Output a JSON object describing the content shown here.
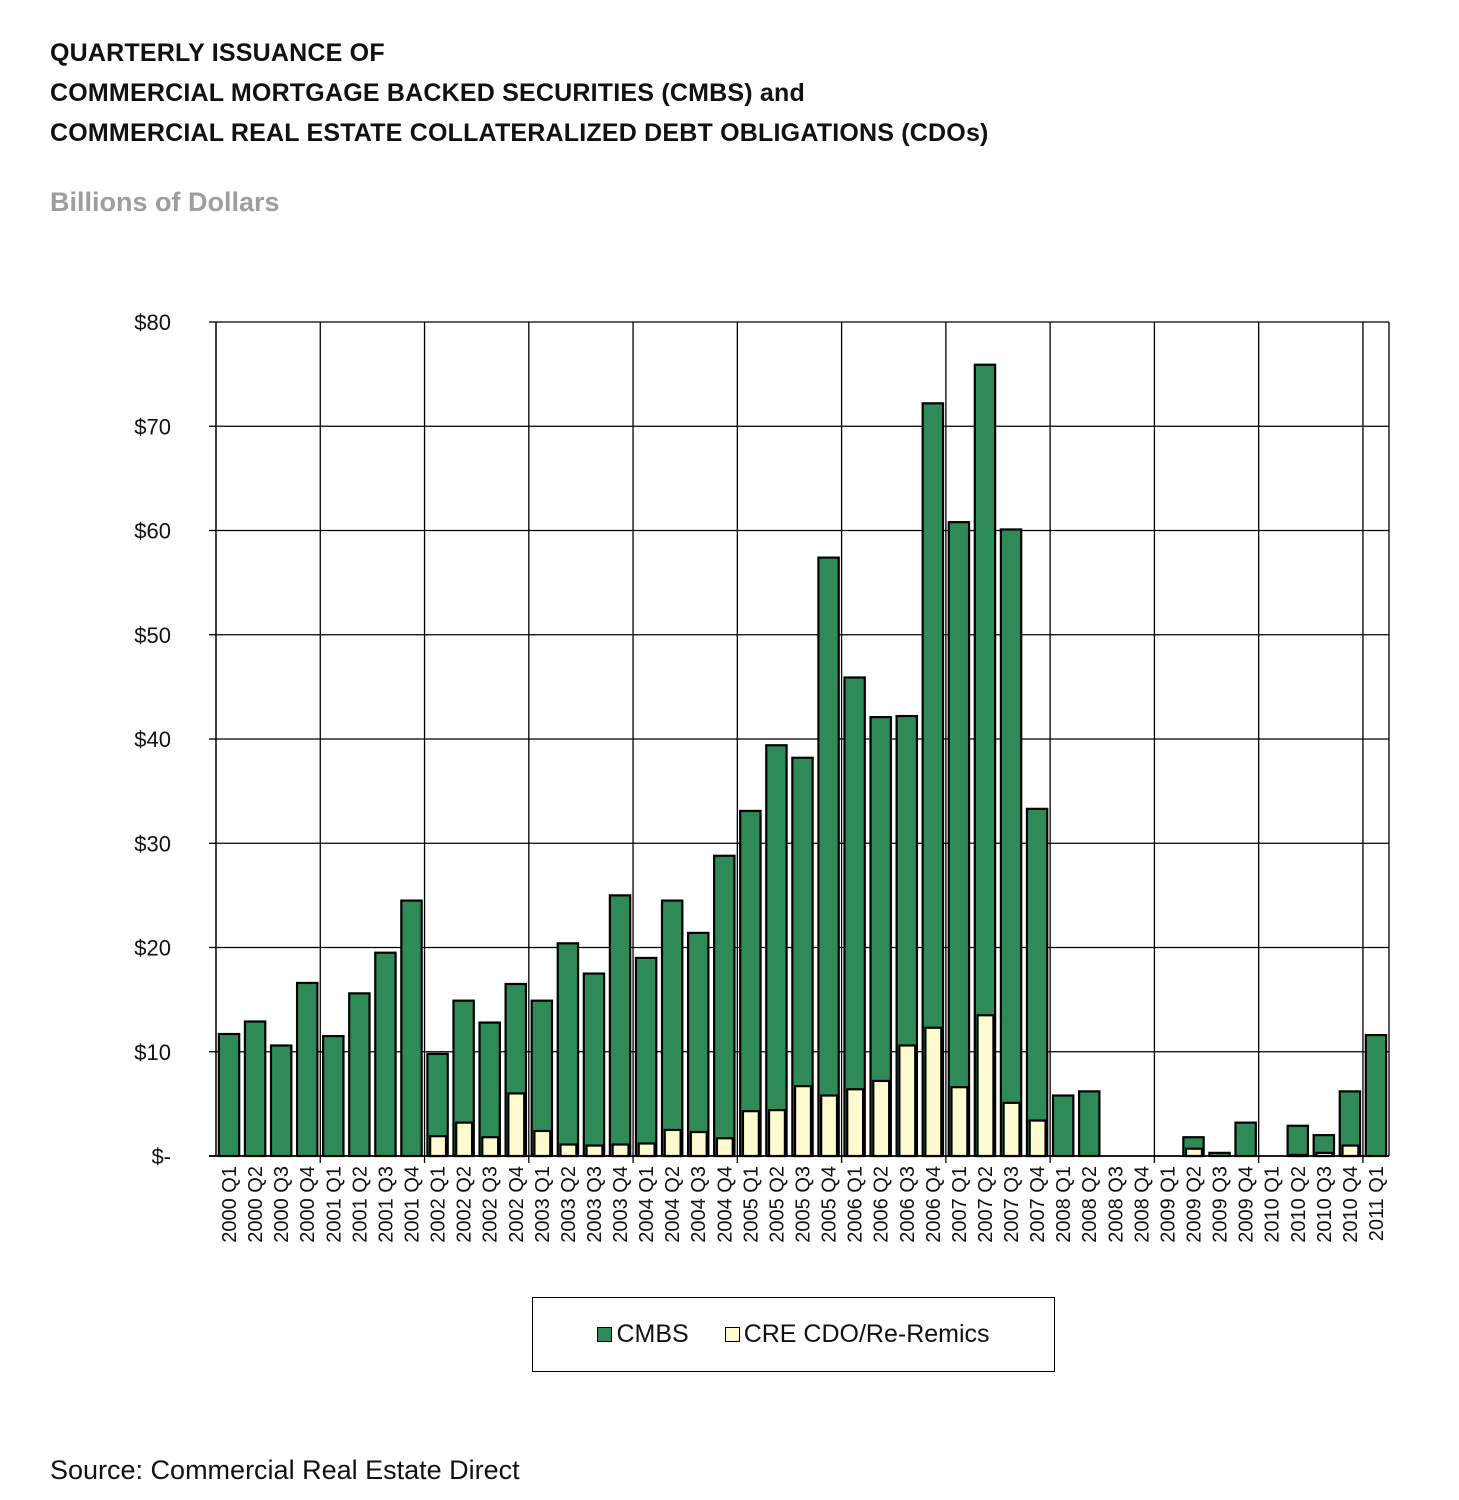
{
  "title_lines": [
    "QUARTERLY ISSUANCE OF",
    "COMMERCIAL MORTGAGE BACKED SECURITIES (CMBS) and",
    "COMMERCIAL REAL ESTATE COLLATERALIZED DEBT OBLIGATIONS (CDOs)"
  ],
  "subtitle": "Billions of Dollars",
  "source": "Source: Commercial Real Estate Direct",
  "colors": {
    "cmbs": "#2e8b57",
    "cre_cdo": "#fffbd0",
    "outline": "#000000"
  },
  "chart_data": {
    "type": "bar",
    "title": "",
    "xlabel": "",
    "ylabel": "",
    "ylim": [
      0,
      80
    ],
    "yticks": [
      0,
      10,
      20,
      30,
      40,
      50,
      60,
      70,
      80
    ],
    "ytick_labels": [
      "$-",
      "$10",
      "$20",
      "$30",
      "$40",
      "$50",
      "$60",
      "$70",
      "$80"
    ],
    "grid": true,
    "legend_position": "bottom",
    "categories": [
      "2000 Q1",
      "2000 Q2",
      "2000 Q3",
      "2000 Q4",
      "2001 Q1",
      "2001 Q2",
      "2001 Q3",
      "2001 Q4",
      "2002 Q1",
      "2002 Q2",
      "2002 Q3",
      "2002 Q4",
      "2003 Q1",
      "2003 Q2",
      "2003 Q3",
      "2003 Q4",
      "2004 Q1",
      "2004 Q2",
      "2004 Q3",
      "2004 Q4",
      "2005 Q1",
      "2005 Q2",
      "2005 Q3",
      "2005 Q4",
      "2006 Q1",
      "2006 Q2",
      "2006 Q3",
      "2006 Q4",
      "2007 Q1",
      "2007 Q2",
      "2007 Q3",
      "2007 Q4",
      "2008 Q1",
      "2008 Q2",
      "2008 Q3",
      "2008 Q4",
      "2009 Q1",
      "2009 Q2",
      "2009 Q3",
      "2009 Q4",
      "2010 Q1",
      "2010 Q2",
      "2010 Q3",
      "2010 Q4",
      "2011 Q1"
    ],
    "series": [
      {
        "name": "CMBS",
        "values": [
          11.7,
          12.9,
          10.6,
          16.6,
          11.5,
          15.6,
          19.5,
          24.5,
          9.8,
          14.9,
          12.8,
          16.5,
          14.9,
          20.4,
          17.5,
          25.0,
          19.0,
          24.5,
          21.4,
          28.8,
          33.1,
          39.4,
          38.2,
          57.4,
          45.9,
          42.1,
          42.2,
          72.2,
          60.8,
          75.9,
          60.1,
          33.3,
          5.8,
          6.2,
          0,
          0,
          0,
          1.8,
          0.3,
          3.2,
          0,
          2.9,
          2.0,
          6.2,
          11.6
        ]
      },
      {
        "name": "CRE CDO/Re-Remics",
        "values": [
          0,
          0,
          0,
          0,
          0,
          0,
          0,
          0,
          1.9,
          3.2,
          1.8,
          6.0,
          2.4,
          1.1,
          1.0,
          1.1,
          1.2,
          2.5,
          2.3,
          1.7,
          4.3,
          4.4,
          6.7,
          5.8,
          6.4,
          7.2,
          10.6,
          12.3,
          6.6,
          13.5,
          5.1,
          3.4,
          0,
          0,
          0,
          0,
          0,
          0.7,
          0,
          0,
          0,
          0.1,
          0.3,
          1.0,
          0
        ]
      }
    ]
  }
}
